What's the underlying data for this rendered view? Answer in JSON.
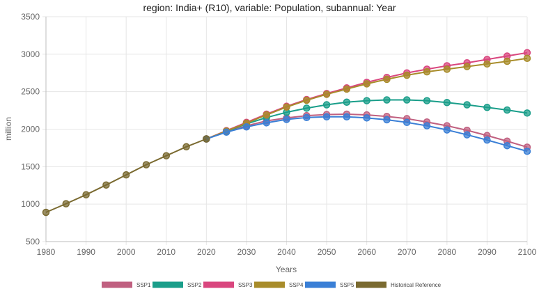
{
  "chart_data": {
    "type": "line",
    "title": "region: India+ (R10), variable: Population, subannual: Year",
    "xlabel": "Years",
    "ylabel": "million",
    "xlim": [
      1980,
      2100
    ],
    "ylim": [
      500,
      3500
    ],
    "x_ticks": [
      1980,
      1990,
      2000,
      2010,
      2020,
      2030,
      2040,
      2050,
      2060,
      2070,
      2080,
      2090,
      2100
    ],
    "y_ticks": [
      500,
      1000,
      1500,
      2000,
      2500,
      3000,
      3500
    ],
    "grid": true,
    "legend_position": "bottom",
    "series": [
      {
        "name": "SSP1",
        "color": "#c06080",
        "x": [
          2020,
          2025,
          2030,
          2035,
          2040,
          2045,
          2050,
          2055,
          2060,
          2065,
          2070,
          2075,
          2080,
          2085,
          2090,
          2095,
          2100
        ],
        "values": [
          1870,
          1965,
          2045,
          2110,
          2150,
          2180,
          2195,
          2200,
          2190,
          2170,
          2140,
          2095,
          2045,
          1985,
          1915,
          1840,
          1760
        ]
      },
      {
        "name": "SSP2",
        "color": "#1a9e8a",
        "x": [
          2020,
          2025,
          2030,
          2035,
          2040,
          2045,
          2050,
          2055,
          2060,
          2065,
          2070,
          2075,
          2080,
          2085,
          2090,
          2095,
          2100
        ],
        "values": [
          1870,
          1970,
          2070,
          2155,
          2225,
          2280,
          2325,
          2360,
          2380,
          2390,
          2390,
          2380,
          2355,
          2325,
          2290,
          2255,
          2215
        ]
      },
      {
        "name": "SSP3",
        "color": "#d9467e",
        "x": [
          2020,
          2025,
          2030,
          2035,
          2040,
          2045,
          2050,
          2055,
          2060,
          2065,
          2070,
          2075,
          2080,
          2085,
          2090,
          2095,
          2100
        ],
        "values": [
          1870,
          1980,
          2090,
          2200,
          2305,
          2395,
          2475,
          2550,
          2625,
          2690,
          2750,
          2800,
          2845,
          2885,
          2930,
          2975,
          3020
        ]
      },
      {
        "name": "SSP4",
        "color": "#a88c2a",
        "x": [
          2020,
          2025,
          2030,
          2035,
          2040,
          2045,
          2050,
          2055,
          2060,
          2065,
          2070,
          2075,
          2080,
          2085,
          2090,
          2095,
          2100
        ],
        "values": [
          1870,
          1975,
          2080,
          2190,
          2295,
          2385,
          2465,
          2535,
          2605,
          2665,
          2720,
          2765,
          2800,
          2835,
          2870,
          2905,
          2945
        ]
      },
      {
        "name": "SSP5",
        "color": "#3a7fd6",
        "x": [
          2020,
          2025,
          2030,
          2035,
          2040,
          2045,
          2050,
          2055,
          2060,
          2065,
          2070,
          2075,
          2080,
          2085,
          2090,
          2095,
          2100
        ],
        "values": [
          1870,
          1960,
          2030,
          2085,
          2130,
          2155,
          2165,
          2165,
          2150,
          2125,
          2090,
          2045,
          1990,
          1925,
          1855,
          1780,
          1705
        ]
      },
      {
        "name": "Historical Reference",
        "color": "#7a6a30",
        "x": [
          1980,
          1985,
          1990,
          1995,
          2000,
          2005,
          2010,
          2015,
          2020
        ],
        "values": [
          890,
          1005,
          1125,
          1255,
          1390,
          1525,
          1645,
          1765,
          1870
        ]
      }
    ]
  }
}
